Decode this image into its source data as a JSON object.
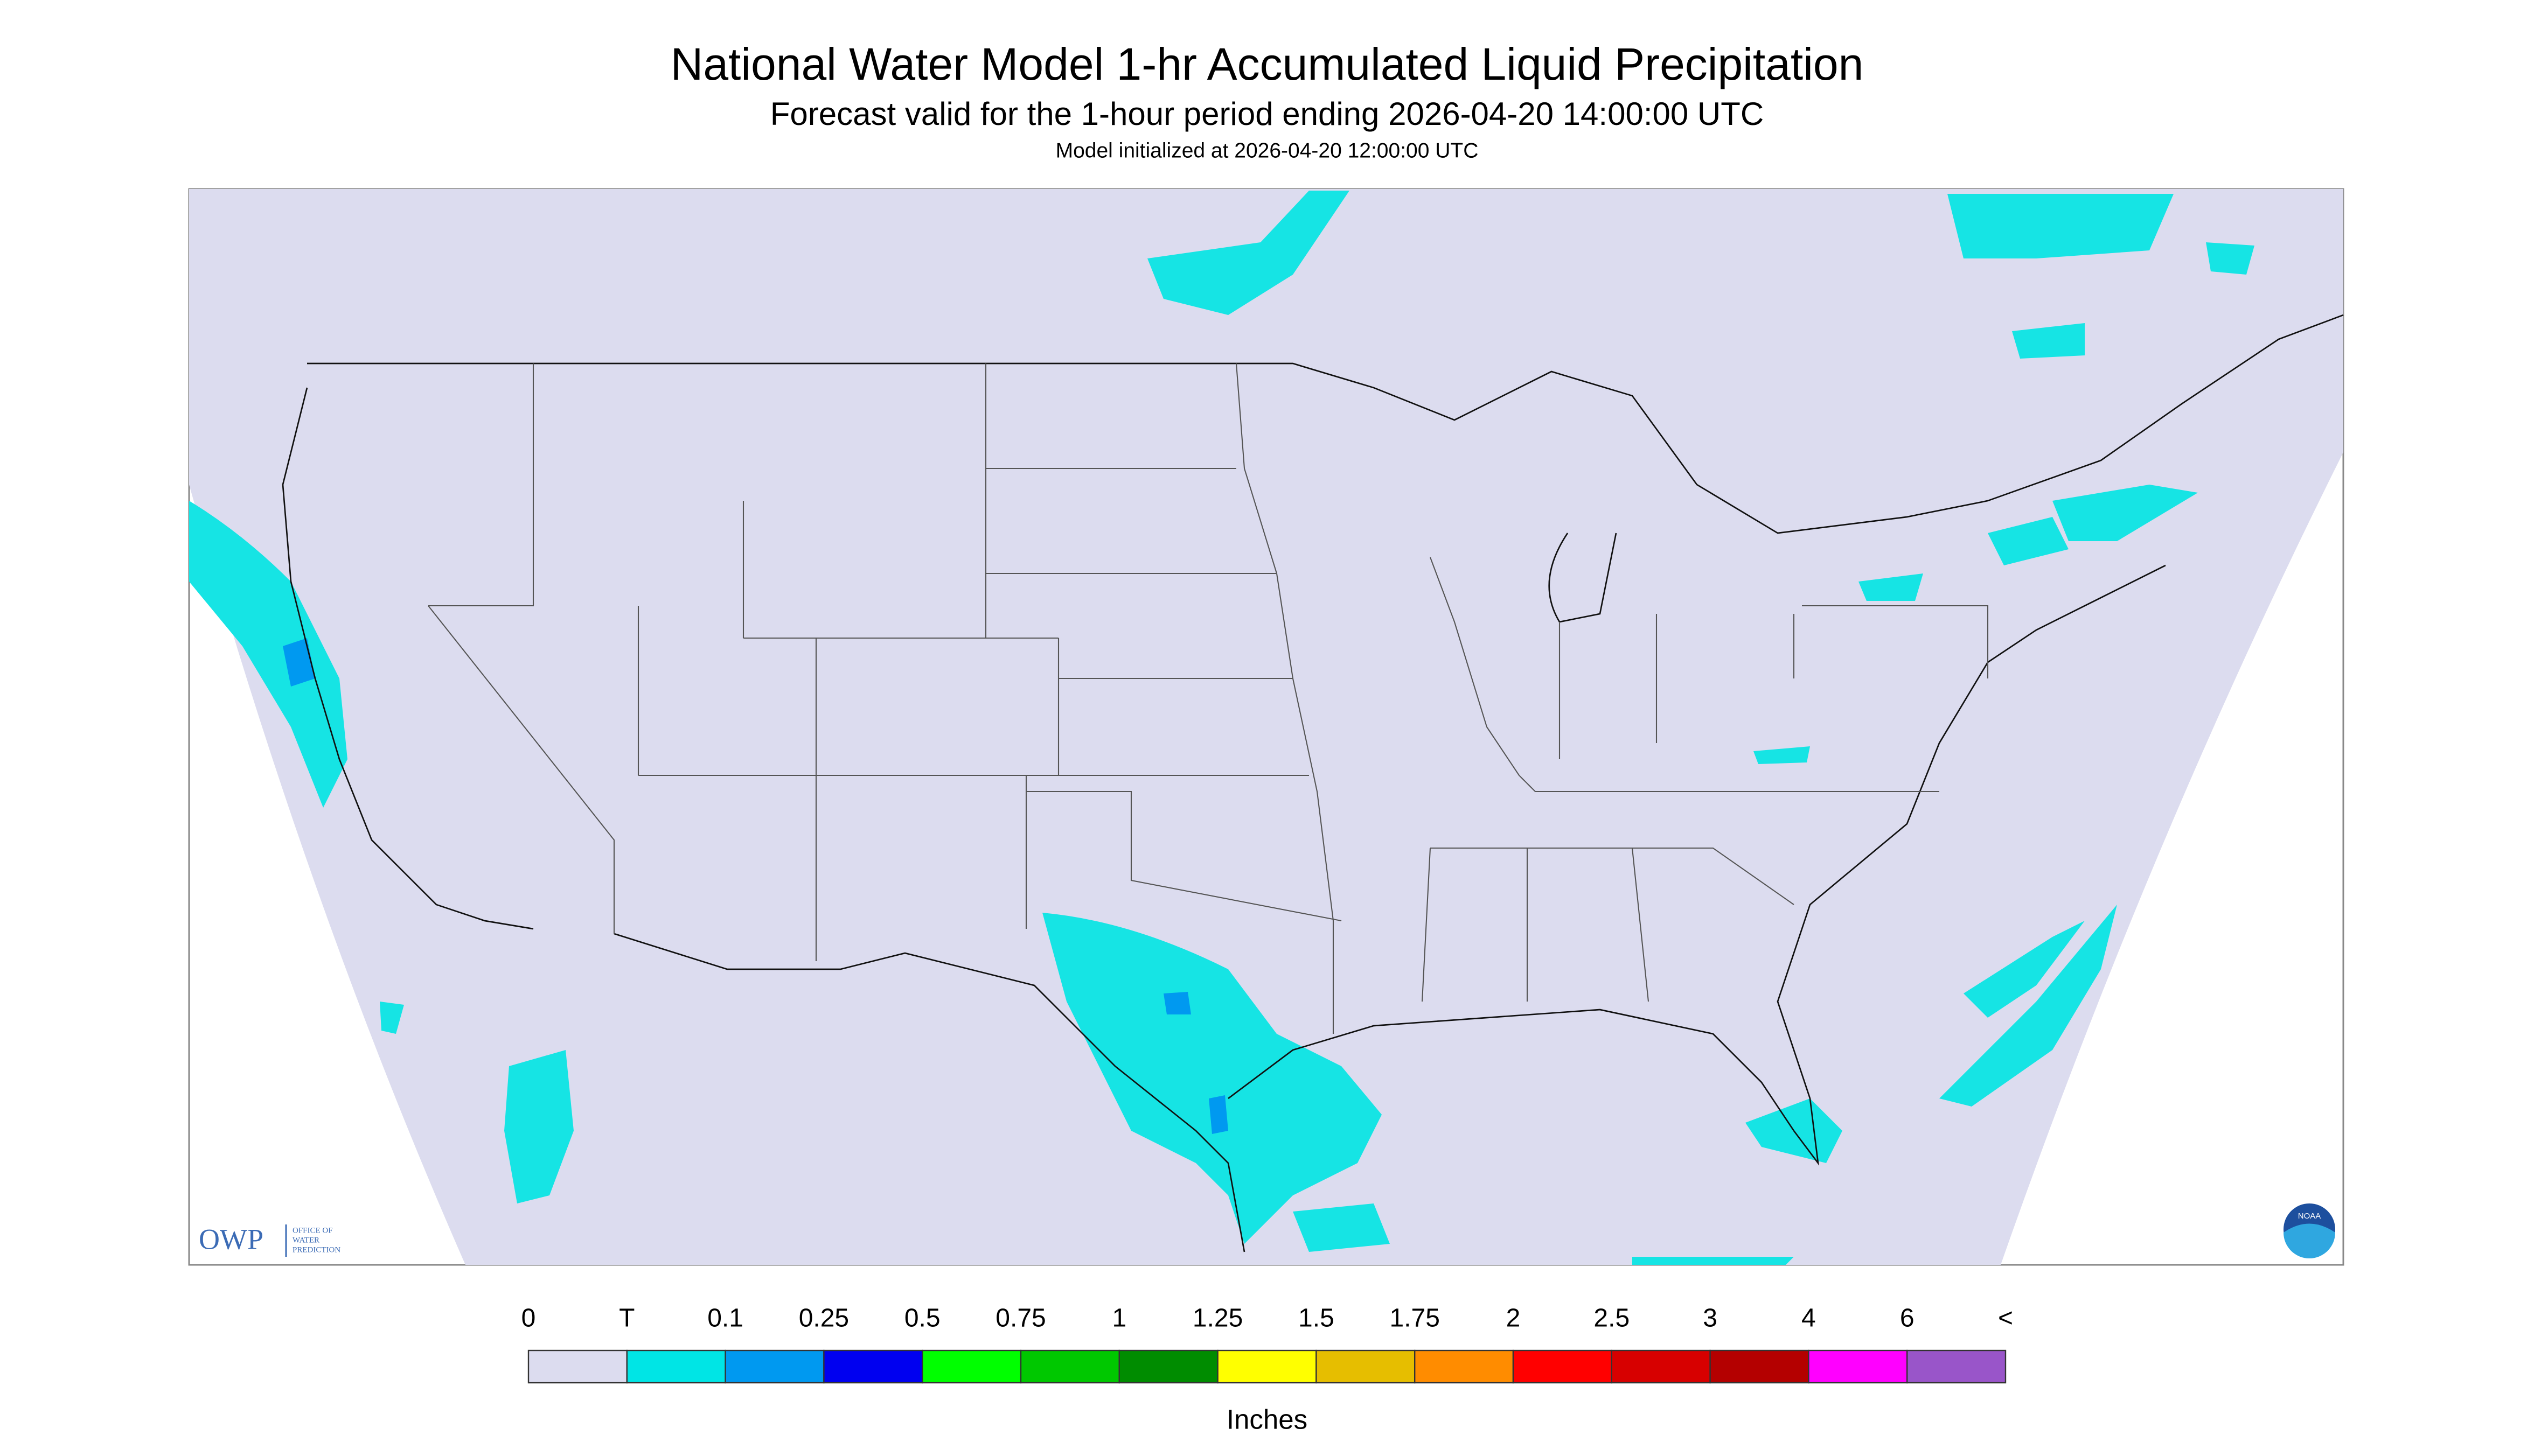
{
  "header": {
    "title": "National Water Model 1-hr Accumulated Liquid Precipitation",
    "subtitle": "Forecast valid for the 1-hour period ending 2026-04-20 14:00:00 UTC",
    "init": "Model initialized at 2026-04-20 12:00:00 UTC"
  },
  "legend": {
    "labels": [
      "0",
      "T",
      "0.1",
      "0.25",
      "0.5",
      "0.75",
      "1",
      "1.25",
      "1.5",
      "1.75",
      "2",
      "2.5",
      "3",
      "4",
      "6",
      "<"
    ],
    "colors": [
      "#dcdcef",
      "#00e5e5",
      "#0099f0",
      "#0000f0",
      "#00ff00",
      "#00c800",
      "#008c00",
      "#ffff00",
      "#e6be00",
      "#ff8c00",
      "#ff0000",
      "#d70000",
      "#b40000",
      "#ff00ff",
      "#9955c9"
    ],
    "unit": "Inches"
  },
  "logos": {
    "owp": "OWP",
    "owp_line1": "OFFICE OF",
    "owp_line2": "WATER",
    "owp_line3": "PREDICTION",
    "noaa": "NOAA"
  }
}
